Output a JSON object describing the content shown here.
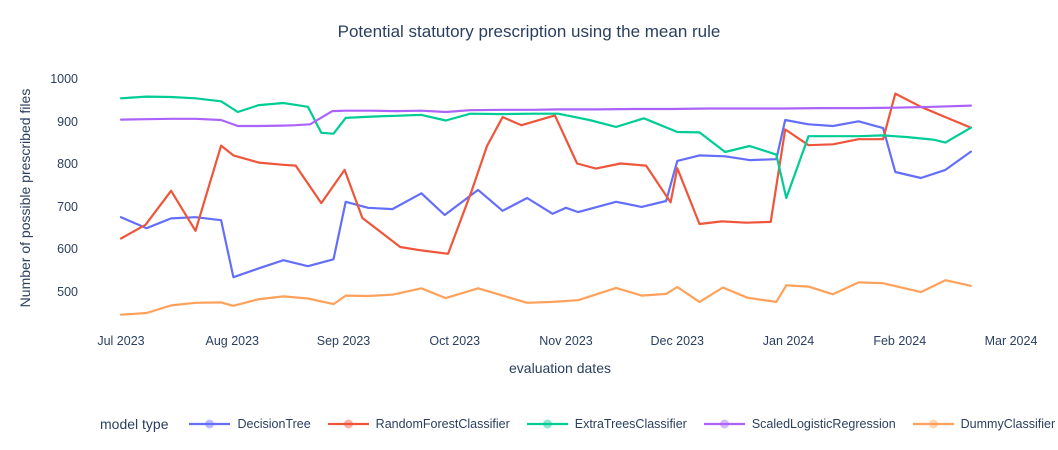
{
  "text_color": "#2a3f5f",
  "background_color": "#ffffff",
  "chart_data": {
    "type": "line",
    "title": "Potential statutory prescription using the mean rule",
    "xlabel": "evaluation dates",
    "ylabel": "Number of possible prescribed files",
    "legend_title": "model type",
    "grid": false,
    "legend_position": "bottom",
    "x_tick_labels": [
      "Jul 2023",
      "Aug 2023",
      "Sep 2023",
      "Oct 2023",
      "Nov 2023",
      "Dec 2023",
      "Jan 2024",
      "Feb 2024",
      "Mar 2024"
    ],
    "y_tick_labels": [
      500,
      600,
      700,
      800,
      900,
      1000
    ],
    "ylim": [
      430,
      1030
    ],
    "x_units": "months_after_jul_2023",
    "series": [
      {
        "name": "DecisionTree",
        "color": "#636EFA",
        "points": [
          [
            0.0,
            678
          ],
          [
            0.23,
            652
          ],
          [
            0.45,
            675
          ],
          [
            0.67,
            678
          ],
          [
            0.9,
            671
          ],
          [
            1.01,
            537
          ],
          [
            1.23,
            557
          ],
          [
            1.46,
            577
          ],
          [
            1.68,
            563
          ],
          [
            1.91,
            579
          ],
          [
            2.02,
            714
          ],
          [
            2.22,
            700
          ],
          [
            2.44,
            697
          ],
          [
            2.7,
            734
          ],
          [
            2.91,
            683
          ],
          [
            3.21,
            742
          ],
          [
            3.43,
            693
          ],
          [
            3.65,
            723
          ],
          [
            3.88,
            686
          ],
          [
            4.0,
            700
          ],
          [
            4.11,
            690
          ],
          [
            4.45,
            714
          ],
          [
            4.68,
            702
          ],
          [
            4.9,
            716
          ],
          [
            5.0,
            810
          ],
          [
            5.2,
            823
          ],
          [
            5.43,
            821
          ],
          [
            5.65,
            812
          ],
          [
            5.89,
            814
          ],
          [
            5.97,
            906
          ],
          [
            6.18,
            896
          ],
          [
            6.4,
            892
          ],
          [
            6.63,
            903
          ],
          [
            6.85,
            887
          ],
          [
            6.96,
            784
          ],
          [
            7.19,
            770
          ],
          [
            7.41,
            789
          ],
          [
            7.64,
            832
          ]
        ]
      },
      {
        "name": "RandomForestClassifier",
        "color": "#EF553B",
        "points": [
          [
            0.0,
            628
          ],
          [
            0.22,
            660
          ],
          [
            0.45,
            740
          ],
          [
            0.67,
            646
          ],
          [
            0.9,
            846
          ],
          [
            1.01,
            823
          ],
          [
            1.24,
            806
          ],
          [
            1.46,
            801
          ],
          [
            1.57,
            799
          ],
          [
            1.8,
            711
          ],
          [
            2.01,
            789
          ],
          [
            2.17,
            676
          ],
          [
            2.51,
            608
          ],
          [
            2.7,
            600
          ],
          [
            2.94,
            592
          ],
          [
            3.15,
            738
          ],
          [
            3.29,
            845
          ],
          [
            3.43,
            913
          ],
          [
            3.6,
            894
          ],
          [
            3.9,
            917
          ],
          [
            4.1,
            804
          ],
          [
            4.27,
            792
          ],
          [
            4.49,
            804
          ],
          [
            4.72,
            799
          ],
          [
            4.94,
            713
          ],
          [
            5.0,
            793
          ],
          [
            5.2,
            662
          ],
          [
            5.4,
            668
          ],
          [
            5.62,
            665
          ],
          [
            5.84,
            667
          ],
          [
            5.97,
            884
          ],
          [
            6.18,
            847
          ],
          [
            6.4,
            849
          ],
          [
            6.63,
            861
          ],
          [
            6.85,
            861
          ],
          [
            6.96,
            968
          ],
          [
            7.19,
            937
          ],
          [
            7.41,
            913
          ],
          [
            7.64,
            888
          ]
        ]
      },
      {
        "name": "ExtraTreesClassifier",
        "color": "#00CC96",
        "points": [
          [
            0.0,
            957
          ],
          [
            0.23,
            961
          ],
          [
            0.45,
            960
          ],
          [
            0.67,
            957
          ],
          [
            0.9,
            950
          ],
          [
            1.05,
            925
          ],
          [
            1.24,
            941
          ],
          [
            1.46,
            946
          ],
          [
            1.68,
            937
          ],
          [
            1.8,
            876
          ],
          [
            1.91,
            874
          ],
          [
            2.02,
            911
          ],
          [
            2.25,
            914
          ],
          [
            2.47,
            916
          ],
          [
            2.7,
            918
          ],
          [
            2.92,
            905
          ],
          [
            3.14,
            921
          ],
          [
            3.43,
            920
          ],
          [
            3.71,
            921
          ],
          [
            3.93,
            921
          ],
          [
            4.21,
            906
          ],
          [
            4.45,
            890
          ],
          [
            4.7,
            910
          ],
          [
            5.0,
            878
          ],
          [
            5.2,
            877
          ],
          [
            5.43,
            831
          ],
          [
            5.65,
            845
          ],
          [
            5.89,
            825
          ],
          [
            5.98,
            723
          ],
          [
            6.18,
            868
          ],
          [
            6.4,
            868
          ],
          [
            6.63,
            868
          ],
          [
            6.85,
            870
          ],
          [
            7.07,
            866
          ],
          [
            7.3,
            860
          ],
          [
            7.41,
            853
          ],
          [
            7.64,
            888
          ]
        ]
      },
      {
        "name": "ScaledLogisticRegression",
        "color": "#AB63FA",
        "points": [
          [
            0.0,
            907
          ],
          [
            0.23,
            908
          ],
          [
            0.45,
            909
          ],
          [
            0.67,
            909
          ],
          [
            0.9,
            906
          ],
          [
            1.05,
            892
          ],
          [
            1.24,
            892
          ],
          [
            1.46,
            893
          ],
          [
            1.57,
            894
          ],
          [
            1.7,
            896
          ],
          [
            1.9,
            927
          ],
          [
            2.02,
            928
          ],
          [
            2.25,
            928
          ],
          [
            2.47,
            927
          ],
          [
            2.7,
            928
          ],
          [
            2.92,
            925
          ],
          [
            3.14,
            929
          ],
          [
            3.43,
            930
          ],
          [
            3.71,
            930
          ],
          [
            3.93,
            931
          ],
          [
            4.27,
            931
          ],
          [
            4.6,
            932
          ],
          [
            4.94,
            932
          ],
          [
            5.28,
            933
          ],
          [
            5.62,
            933
          ],
          [
            5.95,
            933
          ],
          [
            6.29,
            934
          ],
          [
            6.63,
            934
          ],
          [
            6.96,
            935
          ],
          [
            7.3,
            937
          ],
          [
            7.64,
            940
          ]
        ]
      },
      {
        "name": "DummyClassifier",
        "color": "#FFA15A",
        "points": [
          [
            0.0,
            449
          ],
          [
            0.23,
            453
          ],
          [
            0.45,
            471
          ],
          [
            0.67,
            477
          ],
          [
            0.9,
            478
          ],
          [
            1.01,
            470
          ],
          [
            1.23,
            485
          ],
          [
            1.46,
            492
          ],
          [
            1.68,
            487
          ],
          [
            1.91,
            474
          ],
          [
            2.02,
            494
          ],
          [
            2.22,
            493
          ],
          [
            2.44,
            496
          ],
          [
            2.7,
            511
          ],
          [
            2.92,
            488
          ],
          [
            3.21,
            511
          ],
          [
            3.43,
            494
          ],
          [
            3.65,
            477
          ],
          [
            3.88,
            479
          ],
          [
            4.11,
            483
          ],
          [
            4.45,
            512
          ],
          [
            4.68,
            494
          ],
          [
            4.9,
            498
          ],
          [
            5.0,
            514
          ],
          [
            5.2,
            479
          ],
          [
            5.41,
            513
          ],
          [
            5.63,
            489
          ],
          [
            5.89,
            479
          ],
          [
            5.98,
            518
          ],
          [
            6.18,
            515
          ],
          [
            6.4,
            497
          ],
          [
            6.63,
            525
          ],
          [
            6.85,
            523
          ],
          [
            7.19,
            502
          ],
          [
            7.41,
            530
          ],
          [
            7.64,
            517
          ]
        ]
      }
    ]
  }
}
